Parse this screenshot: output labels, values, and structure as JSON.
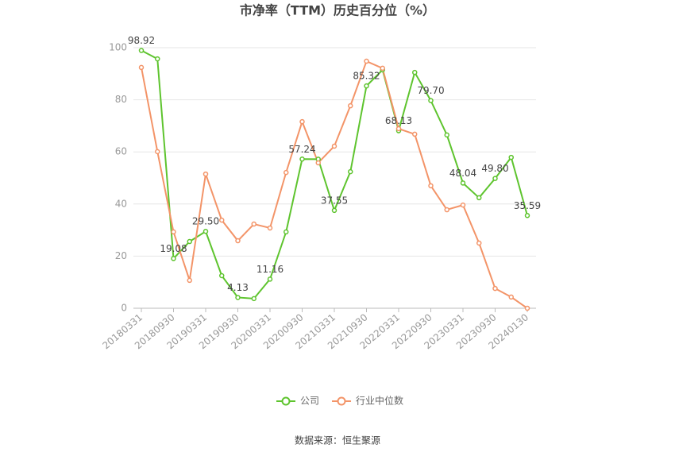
{
  "chart_data": {
    "type": "line",
    "title": "市净率（TTM）历史百分位（%）",
    "source": "数据来源：恒生聚源",
    "categories": [
      "20180331",
      null,
      "20180930",
      null,
      "20190331",
      null,
      "20190930",
      null,
      "20200331",
      null,
      "20200930",
      null,
      "20210331",
      null,
      "20210930",
      null,
      "20220331",
      null,
      "20220930",
      null,
      "20230331",
      null,
      "20230930",
      null,
      "20240130"
    ],
    "series": [
      {
        "name": "公司",
        "color": "#5ec42e",
        "values": [
          98.92,
          95.7,
          19.08,
          25.6,
          29.5,
          12.5,
          4.13,
          3.7,
          11.16,
          29.3,
          57.24,
          57.2,
          37.55,
          52.4,
          85.32,
          91.5,
          68.13,
          90.5,
          79.7,
          66.5,
          48.04,
          42.4,
          49.8,
          57.9,
          35.59
        ],
        "value_labels": [
          "98.92",
          null,
          "19.08",
          null,
          "29.50",
          null,
          "4.13",
          null,
          "11.16",
          null,
          "57.24",
          null,
          "37.55",
          null,
          "85.32",
          null,
          "68.13",
          null,
          "79.70",
          null,
          "48.04",
          null,
          "49.80",
          null,
          "35.59"
        ]
      },
      {
        "name": "行业中位数",
        "color": "#f39468",
        "values": [
          92.4,
          60.1,
          29.3,
          10.7,
          51.5,
          33.8,
          25.9,
          32.3,
          30.8,
          52.1,
          71.6,
          55.8,
          62.2,
          77.7,
          94.8,
          92.1,
          68.9,
          66.8,
          47.0,
          37.8,
          39.6,
          25.0,
          7.6,
          4.3,
          0
        ]
      }
    ],
    "ylim": [
      0,
      100
    ],
    "yticks": [
      0,
      20,
      40,
      60,
      80,
      100
    ],
    "grid": true,
    "legend": "bottom"
  }
}
